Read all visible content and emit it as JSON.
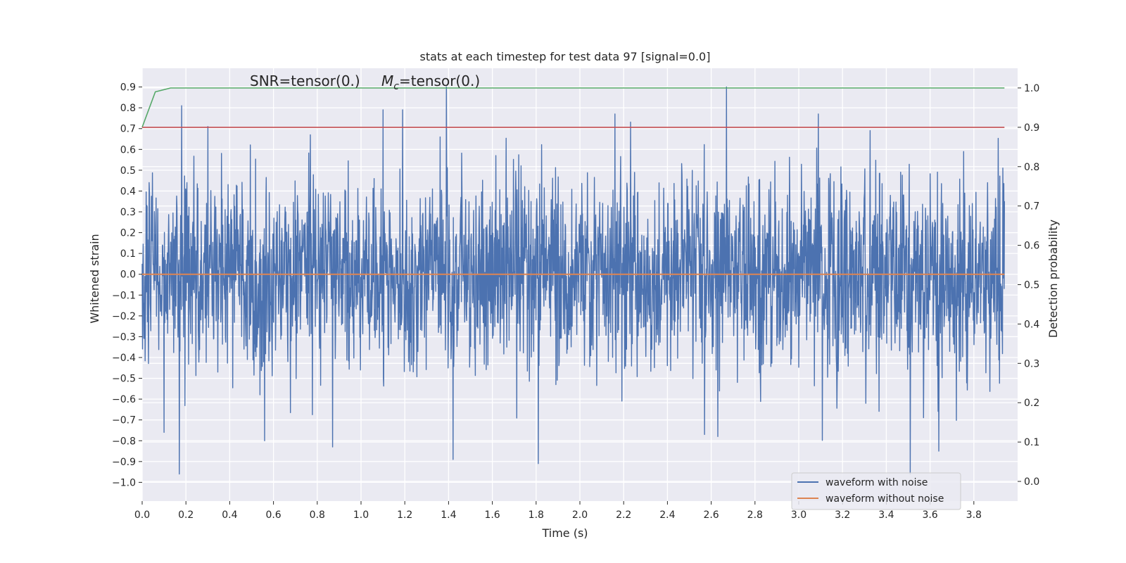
{
  "chart_data": {
    "type": "line",
    "title": "stats at each timestep for test data 97 [signal=0.0]",
    "xlabel": "Time (s)",
    "ylabel": "Whitened strain",
    "y2label": "Detection probability",
    "xlim": [
      0.0,
      4.0
    ],
    "ylim": [
      -1.09,
      0.99
    ],
    "y2lim": [
      -0.05,
      1.05
    ],
    "xticks": [
      "0.0",
      "0.2",
      "0.4",
      "0.6",
      "0.8",
      "1.0",
      "1.2",
      "1.4",
      "1.6",
      "1.8",
      "2.0",
      "2.2",
      "2.4",
      "2.6",
      "2.8",
      "3.0",
      "3.2",
      "3.4",
      "3.6",
      "3.8"
    ],
    "yticks": [
      "0.9",
      "0.8",
      "0.7",
      "0.6",
      "0.5",
      "0.4",
      "0.3",
      "0.2",
      "0.1",
      "0.0",
      "−0.1",
      "−0.2",
      "−0.3",
      "−0.4",
      "−0.5",
      "−0.6",
      "−0.7",
      "−0.8",
      "−0.9",
      "−1.0"
    ],
    "y2ticks": [
      "1.0",
      "0.9",
      "0.8",
      "0.7",
      "0.6",
      "0.5",
      "0.4",
      "0.3",
      "0.2",
      "0.1",
      "0.0"
    ],
    "annotation_snr": "SNR=tensor(0.)",
    "annotation_mc_symbol": "M",
    "annotation_mc_subscript": "c",
    "annotation_mc_value": "=tensor(0.)",
    "grid": true,
    "legend_position": "lower-right",
    "background_color": "#eaeaf2",
    "series": [
      {
        "name": "waveform with noise",
        "axis": "left",
        "color": "#4c72b0",
        "noise_std": 0.23,
        "duration": 3.94,
        "spikes": [
          {
            "x": 0.18,
            "y": 0.81
          },
          {
            "x": 0.17,
            "y": -0.96
          },
          {
            "x": 0.3,
            "y": 0.71
          },
          {
            "x": 0.56,
            "y": -0.8
          },
          {
            "x": 0.87,
            "y": -0.83
          },
          {
            "x": 1.1,
            "y": 0.79
          },
          {
            "x": 1.19,
            "y": 0.79
          },
          {
            "x": 1.39,
            "y": 0.9
          },
          {
            "x": 1.42,
            "y": -0.89
          },
          {
            "x": 1.81,
            "y": -0.91
          },
          {
            "x": 2.16,
            "y": 0.77
          },
          {
            "x": 2.67,
            "y": 0.9
          },
          {
            "x": 2.63,
            "y": -0.78
          },
          {
            "x": 3.09,
            "y": 0.77
          },
          {
            "x": 3.51,
            "y": -0.96
          },
          {
            "x": 3.64,
            "y": -0.85
          },
          {
            "x": 0.1,
            "y": -0.76
          },
          {
            "x": 2.57,
            "y": -0.77
          }
        ]
      },
      {
        "name": "waveform without noise",
        "axis": "left",
        "color": "#dd8452",
        "x": [
          0.0,
          3.94
        ],
        "y": [
          0.0,
          0.0
        ]
      },
      {
        "name": "",
        "axis": "right",
        "color": "#55a868",
        "x": [
          0.0,
          0.06,
          0.13,
          0.2,
          3.94
        ],
        "y": [
          0.9,
          0.99,
          1.0,
          1.0,
          1.0
        ]
      },
      {
        "name": "",
        "axis": "right",
        "color": "#c44e52",
        "x": [
          0.0,
          3.94
        ],
        "y": [
          0.9,
          0.9
        ]
      }
    ]
  }
}
